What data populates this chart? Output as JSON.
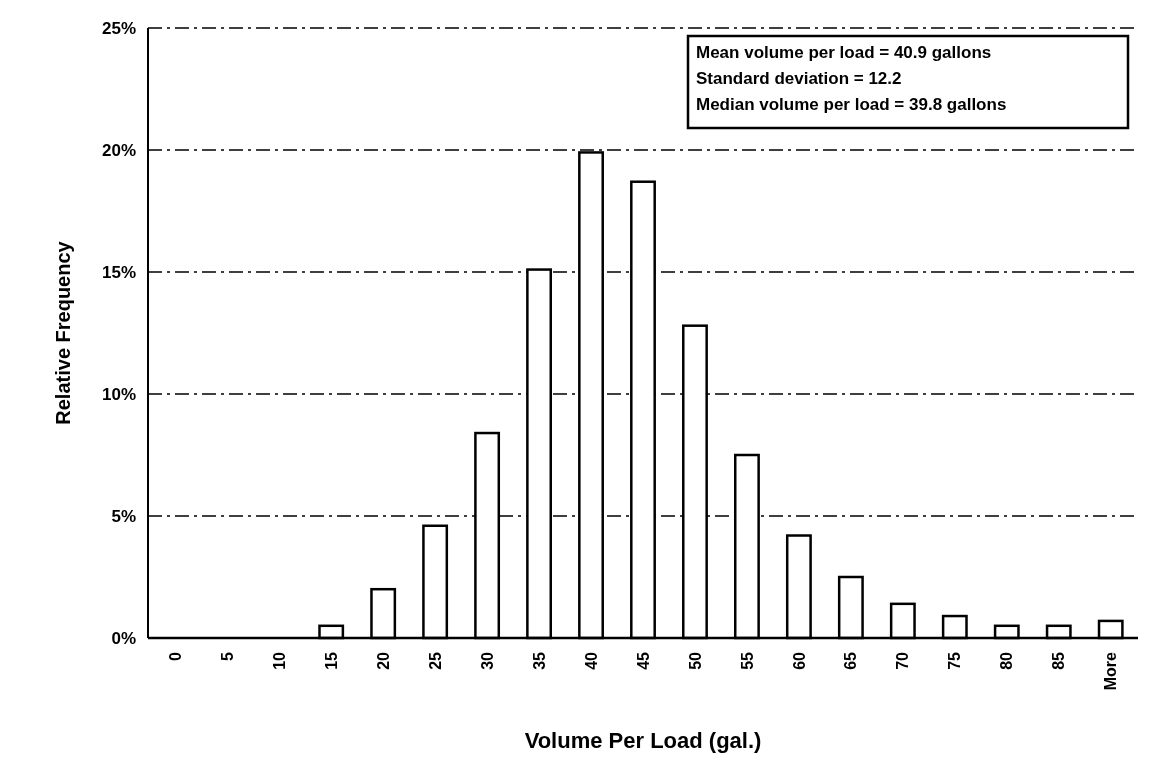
{
  "chart_data": {
    "type": "bar",
    "xlabel": "Volume Per Load (gal.)",
    "ylabel": "Relative Frequency",
    "categories": [
      "0",
      "5",
      "10",
      "15",
      "20",
      "25",
      "30",
      "35",
      "40",
      "45",
      "50",
      "55",
      "60",
      "65",
      "70",
      "75",
      "80",
      "85",
      "More"
    ],
    "values": [
      0,
      0,
      0,
      0.5,
      2.0,
      4.6,
      8.4,
      15.1,
      19.9,
      18.7,
      12.8,
      7.5,
      4.2,
      2.5,
      1.4,
      0.9,
      0.5,
      0.5,
      0.7
    ],
    "color": "#ffffff",
    "ylim": [
      0,
      25
    ],
    "yticks": [
      {
        "value": 0,
        "label": "0%"
      },
      {
        "value": 5,
        "label": "5%"
      },
      {
        "value": 10,
        "label": "10%"
      },
      {
        "value": 15,
        "label": "15%"
      },
      {
        "value": 20,
        "label": "20%"
      },
      {
        "value": 25,
        "label": "25%"
      }
    ],
    "grid": "y",
    "annotations": [
      "Mean volume per load = 40.9 gallons",
      "Standard deviation = 12.2",
      "Median volume per load = 39.8 gallons"
    ]
  }
}
